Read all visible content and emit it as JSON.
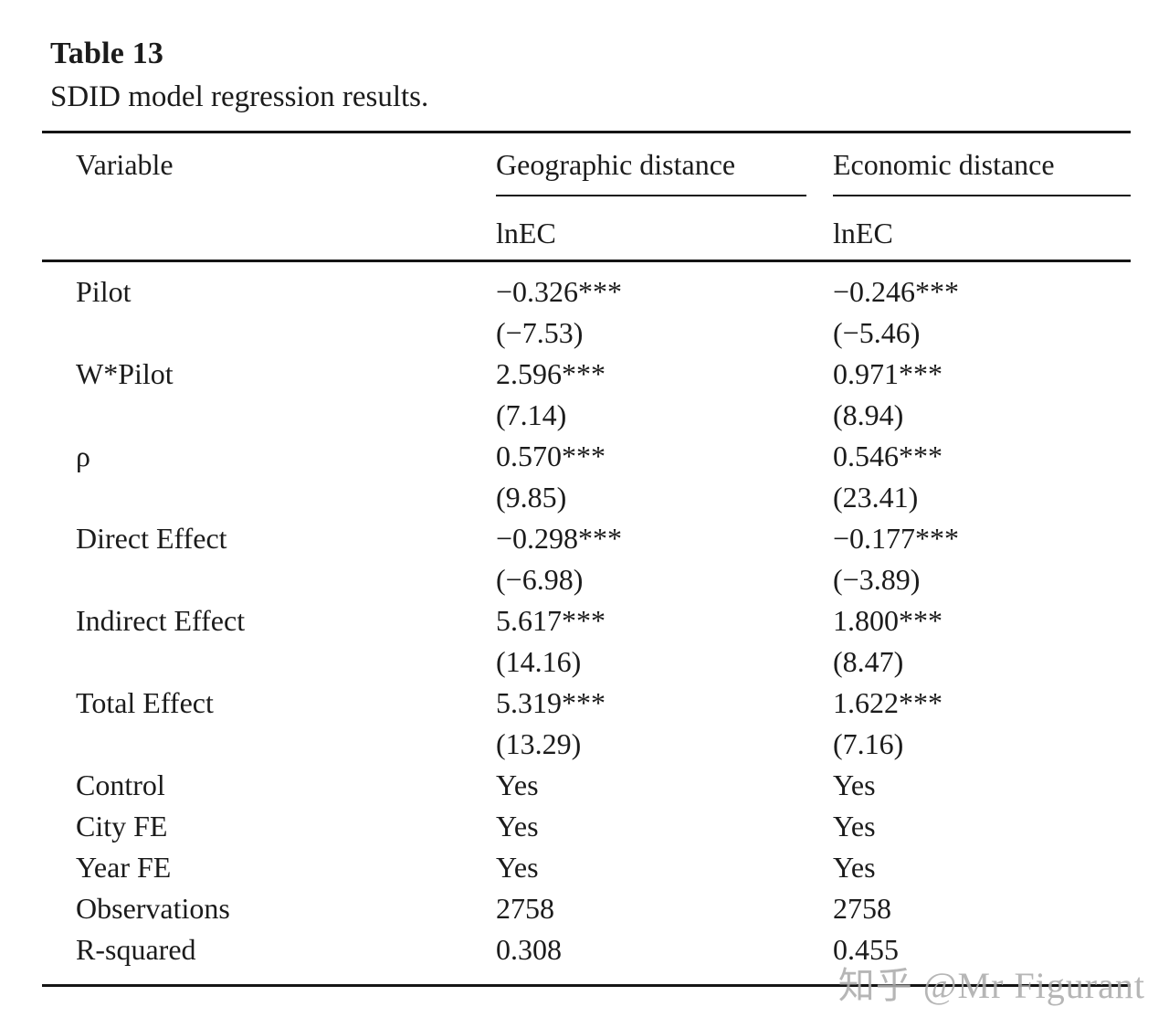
{
  "title": "Table 13",
  "subtitle": "SDID model regression results.",
  "table": {
    "columns": [
      "Variable",
      "Geographic distance",
      "Economic distance"
    ],
    "subheaders": [
      "lnEC",
      "lnEC"
    ],
    "rows": [
      [
        "Pilot",
        "−0.326***",
        "−0.246***"
      ],
      [
        "",
        "(−7.53)",
        "(−5.46)"
      ],
      [
        "W*Pilot",
        "2.596***",
        "0.971***"
      ],
      [
        "",
        "(7.14)",
        "(8.94)"
      ],
      [
        "ρ",
        "0.570***",
        "0.546***"
      ],
      [
        "",
        "(9.85)",
        "(23.41)"
      ],
      [
        "Direct Effect",
        "−0.298***",
        "−0.177***"
      ],
      [
        "",
        "(−6.98)",
        "(−3.89)"
      ],
      [
        "Indirect Effect",
        "5.617***",
        "1.800***"
      ],
      [
        "",
        "(14.16)",
        "(8.47)"
      ],
      [
        "Total Effect",
        "5.319***",
        "1.622***"
      ],
      [
        "",
        "(13.29)",
        "(7.16)"
      ],
      [
        "Control",
        "Yes",
        "Yes"
      ],
      [
        "City FE",
        "Yes",
        "Yes"
      ],
      [
        "Year FE",
        "Yes",
        "Yes"
      ],
      [
        "Observations",
        "2758",
        "2758"
      ],
      [
        "R-squared",
        "0.308",
        "0.455"
      ]
    ]
  },
  "watermark": {
    "text": "知乎 @Mr Figurant",
    "color": "#acacac"
  }
}
